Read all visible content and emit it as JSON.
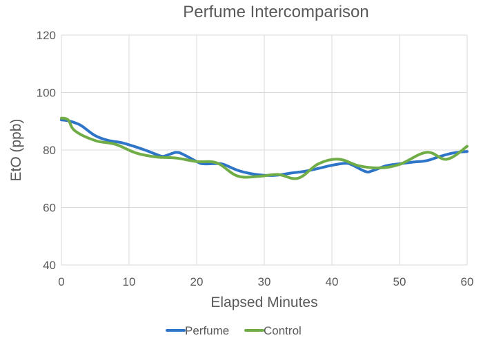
{
  "chart_data": {
    "type": "line",
    "title": "Perfume Intercomparison",
    "xlabel": "Elapsed Minutes",
    "ylabel": "EtO (ppb)",
    "xlim": [
      0,
      60
    ],
    "ylim": [
      40,
      120
    ],
    "xticks": [
      "0",
      "10",
      "20",
      "30",
      "40",
      "50",
      "60"
    ],
    "yticks": [
      "40",
      "60",
      "80",
      "100",
      "120"
    ],
    "grid": true,
    "legend_position": "bottom",
    "series": [
      {
        "name": "Perfume",
        "color": "#2e75c8",
        "points": [
          [
            0,
            90.5
          ],
          [
            1,
            90.2
          ],
          [
            2,
            89.5
          ],
          [
            3,
            88.4
          ],
          [
            5,
            85.0
          ],
          [
            7,
            83.3
          ],
          [
            9,
            82.5
          ],
          [
            12,
            80.3
          ],
          [
            14,
            78.5
          ],
          [
            15,
            77.8
          ],
          [
            16,
            78.5
          ],
          [
            17,
            79.2
          ],
          [
            18,
            78.5
          ],
          [
            20,
            76.0
          ],
          [
            21,
            75.2
          ],
          [
            23,
            75.3
          ],
          [
            24,
            75.0
          ],
          [
            26,
            73.0
          ],
          [
            28,
            71.8
          ],
          [
            30,
            71.2
          ],
          [
            32,
            71.3
          ],
          [
            34,
            72.0
          ],
          [
            36,
            72.6
          ],
          [
            38,
            73.6
          ],
          [
            40,
            74.7
          ],
          [
            42,
            75.4
          ],
          [
            43,
            74.8
          ],
          [
            45,
            72.5
          ],
          [
            46,
            72.8
          ],
          [
            48,
            74.5
          ],
          [
            50,
            75.2
          ],
          [
            52,
            75.8
          ],
          [
            54,
            76.3
          ],
          [
            56,
            77.8
          ],
          [
            58,
            79.0
          ],
          [
            60,
            79.5
          ]
        ]
      },
      {
        "name": "Control",
        "color": "#70ad47",
        "points": [
          [
            0,
            91.1
          ],
          [
            1,
            90.5
          ],
          [
            2,
            86.7
          ],
          [
            5,
            83.3
          ],
          [
            8,
            82.0
          ],
          [
            11,
            79.0
          ],
          [
            14,
            77.6
          ],
          [
            17,
            77.2
          ],
          [
            20,
            76.0
          ],
          [
            23,
            75.5
          ],
          [
            26,
            71.0
          ],
          [
            29,
            70.8
          ],
          [
            32,
            71.5
          ],
          [
            35,
            70.2
          ],
          [
            38,
            75.2
          ],
          [
            41,
            76.8
          ],
          [
            44,
            74.5
          ],
          [
            47,
            73.8
          ],
          [
            50,
            75.0
          ],
          [
            54,
            79.2
          ],
          [
            57,
            76.8
          ],
          [
            60,
            81.3
          ]
        ]
      }
    ]
  }
}
